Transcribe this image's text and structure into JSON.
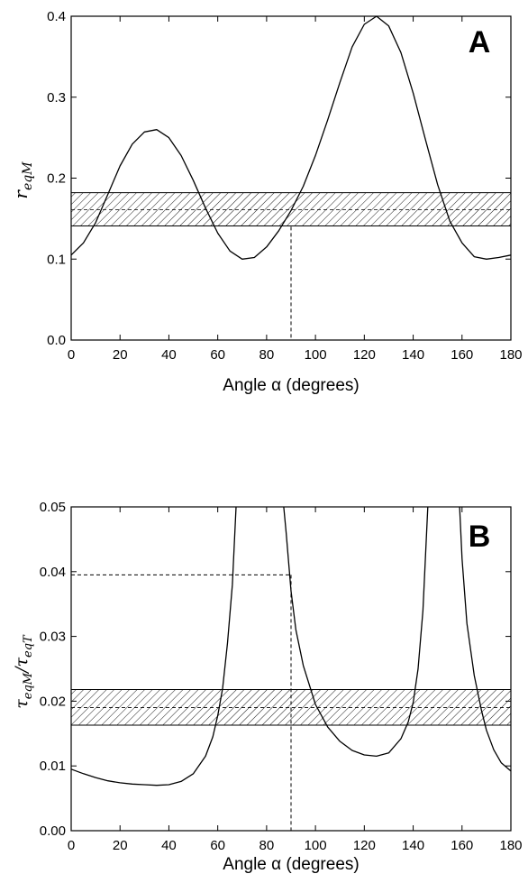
{
  "chart_data": [
    {
      "type": "line",
      "panel_label": "A",
      "title": "",
      "xlabel": "Angle α (degrees)",
      "ylabel": "r_eqM",
      "xlim": [
        0,
        180
      ],
      "ylim": [
        0,
        0.4
      ],
      "x_ticks": [
        0,
        20,
        40,
        60,
        80,
        100,
        120,
        140,
        160,
        180
      ],
      "y_ticks": [
        0.0,
        0.1,
        0.2,
        0.3,
        0.4
      ],
      "x_tick_labels": [
        "0",
        "20",
        "40",
        "60",
        "80",
        "100",
        "120",
        "140",
        "160",
        "180"
      ],
      "y_tick_labels": [
        "0.0",
        "0.1",
        "0.2",
        "0.3",
        "0.4"
      ],
      "grid": false,
      "series": [
        {
          "x": [
            0,
            5,
            10,
            15,
            20,
            25,
            30,
            35,
            40,
            45,
            50,
            55,
            60,
            65,
            70,
            75,
            80,
            85,
            90,
            95,
            100,
            105,
            110,
            115,
            120,
            125,
            130,
            135,
            140,
            145,
            150,
            155,
            160,
            165,
            170,
            175,
            180
          ],
          "y": [
            0.105,
            0.12,
            0.145,
            0.18,
            0.215,
            0.242,
            0.257,
            0.26,
            0.25,
            0.228,
            0.197,
            0.163,
            0.132,
            0.11,
            0.1,
            0.102,
            0.115,
            0.135,
            0.16,
            0.19,
            0.228,
            0.272,
            0.318,
            0.362,
            0.39,
            0.4,
            0.388,
            0.355,
            0.305,
            0.248,
            0.192,
            0.147,
            0.12,
            0.103,
            0.1,
            0.102,
            0.105
          ]
        }
      ],
      "band": {
        "y_low": 0.141,
        "y_high": 0.182,
        "y_mid": 0.161
      },
      "guide": {
        "x": 90,
        "y": 0.14
      }
    },
    {
      "type": "line",
      "panel_label": "B",
      "title": "",
      "xlabel": "Angle α (degrees)",
      "ylabel": "τ_eqM / τ_eqT",
      "xlim": [
        0,
        180
      ],
      "ylim": [
        0,
        0.05
      ],
      "x_ticks": [
        0,
        20,
        40,
        60,
        80,
        100,
        120,
        140,
        160,
        180
      ],
      "y_ticks": [
        0.0,
        0.01,
        0.02,
        0.03,
        0.04,
        0.05
      ],
      "x_tick_labels": [
        "0",
        "20",
        "40",
        "60",
        "80",
        "100",
        "120",
        "140",
        "160",
        "180"
      ],
      "y_tick_labels": [
        "0.00",
        "0.01",
        "0.02",
        "0.03",
        "0.04",
        "0.05"
      ],
      "grid": false,
      "series": [
        {
          "segments": [
            {
              "x": [
                0,
                5,
                10,
                15,
                20,
                25,
                30,
                35,
                40,
                45,
                50,
                55,
                58,
                60,
                62,
                64,
                66,
                67.5
              ],
              "y": [
                0.0095,
                0.0088,
                0.0082,
                0.0077,
                0.0074,
                0.0072,
                0.0071,
                0.007,
                0.0071,
                0.0076,
                0.0088,
                0.0115,
                0.0145,
                0.0178,
                0.022,
                0.029,
                0.038,
                0.05
              ]
            },
            {
              "x": [
                87,
                88,
                90,
                92,
                95,
                100,
                105,
                110,
                115,
                120,
                125,
                130,
                135,
                138,
                140,
                142,
                144,
                146
              ],
              "y": [
                0.05,
                0.046,
                0.037,
                0.031,
                0.0255,
                0.0195,
                0.016,
                0.0138,
                0.0124,
                0.0117,
                0.0115,
                0.012,
                0.0142,
                0.0168,
                0.0198,
                0.025,
                0.034,
                0.05
              ]
            },
            {
              "x": [
                159,
                160,
                162,
                165,
                168,
                170,
                173,
                176,
                180
              ],
              "y": [
                0.05,
                0.042,
                0.032,
                0.024,
                0.0185,
                0.0155,
                0.0125,
                0.0105,
                0.0092
              ]
            }
          ]
        }
      ],
      "band": {
        "y_low": 0.0163,
        "y_high": 0.0218,
        "y_mid": 0.019
      },
      "guide": {
        "x": 90,
        "y": 0.0395
      }
    }
  ]
}
